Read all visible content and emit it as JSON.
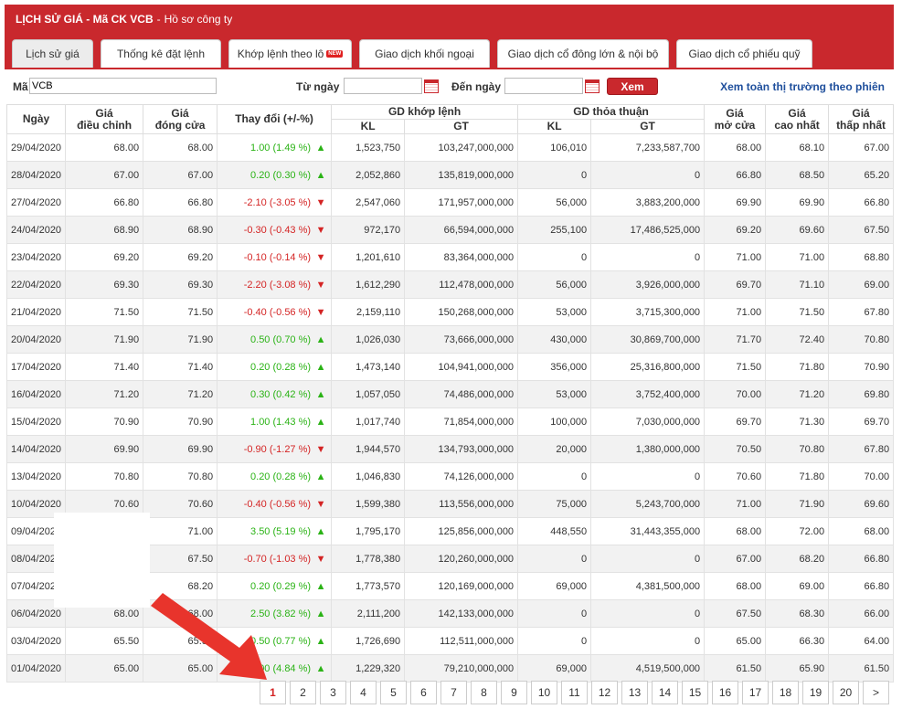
{
  "header": {
    "title": "LỊCH SỬ GIÁ - Mã CK VCB",
    "separator": "-",
    "profile_link": "Hồ sơ công ty"
  },
  "tabs": [
    {
      "label": "Lịch sử giá",
      "active": true
    },
    {
      "label": "Thống kê đặt lệnh",
      "active": false
    },
    {
      "label": "Khớp lệnh theo lô",
      "active": false,
      "badge": "NEW"
    },
    {
      "label": "Giao dịch khối ngoại",
      "active": false
    },
    {
      "label": "Giao dịch cổ đông lớn & nội bộ",
      "active": false
    },
    {
      "label": "Giao dịch cổ phiếu quỹ",
      "active": false
    }
  ],
  "filter": {
    "code_label": "Mã",
    "code_value": "VCB",
    "from_label": "Từ ngày",
    "from_value": "",
    "to_label": "Đến ngày",
    "to_value": "",
    "submit_label": "Xem",
    "market_link": "Xem toàn thị trường theo phiên"
  },
  "table": {
    "headers": {
      "date": "Ngày",
      "adj_price": "Giá\nđiều chỉnh",
      "close_price": "Giá\nđóng cửa",
      "change": "Thay đổi (+/-%)",
      "matched": "GD khớp lệnh",
      "negotiated": "GD thỏa thuận",
      "kl": "KL",
      "gt": "GT",
      "open": "Giá\nmở cửa",
      "high": "Giá\ncao nhất",
      "low": "Giá\nthấp nhất"
    },
    "rows": [
      {
        "date": "29/04/2020",
        "adj": "68.00",
        "close": "68.00",
        "change": "1.00 (1.49 %)",
        "dir": "up",
        "kl": "1,523,750",
        "gt": "103,247,000,000",
        "tt_kl": "106,010",
        "tt_gt": "7,233,587,700",
        "open": "68.00",
        "high": "68.10",
        "low": "67.00"
      },
      {
        "date": "28/04/2020",
        "adj": "67.00",
        "close": "67.00",
        "change": "0.20 (0.30 %)",
        "dir": "up",
        "kl": "2,052,860",
        "gt": "135,819,000,000",
        "tt_kl": "0",
        "tt_gt": "0",
        "open": "66.80",
        "high": "68.50",
        "low": "65.20"
      },
      {
        "date": "27/04/2020",
        "adj": "66.80",
        "close": "66.80",
        "change": "-2.10 (-3.05 %)",
        "dir": "down",
        "kl": "2,547,060",
        "gt": "171,957,000,000",
        "tt_kl": "56,000",
        "tt_gt": "3,883,200,000",
        "open": "69.90",
        "high": "69.90",
        "low": "66.80"
      },
      {
        "date": "24/04/2020",
        "adj": "68.90",
        "close": "68.90",
        "change": "-0.30 (-0.43 %)",
        "dir": "down",
        "kl": "972,170",
        "gt": "66,594,000,000",
        "tt_kl": "255,100",
        "tt_gt": "17,486,525,000",
        "open": "69.20",
        "high": "69.60",
        "low": "67.50"
      },
      {
        "date": "23/04/2020",
        "adj": "69.20",
        "close": "69.20",
        "change": "-0.10 (-0.14 %)",
        "dir": "down",
        "kl": "1,201,610",
        "gt": "83,364,000,000",
        "tt_kl": "0",
        "tt_gt": "0",
        "open": "71.00",
        "high": "71.00",
        "low": "68.80"
      },
      {
        "date": "22/04/2020",
        "adj": "69.30",
        "close": "69.30",
        "change": "-2.20 (-3.08 %)",
        "dir": "down",
        "kl": "1,612,290",
        "gt": "112,478,000,000",
        "tt_kl": "56,000",
        "tt_gt": "3,926,000,000",
        "open": "69.70",
        "high": "71.10",
        "low": "69.00"
      },
      {
        "date": "21/04/2020",
        "adj": "71.50",
        "close": "71.50",
        "change": "-0.40 (-0.56 %)",
        "dir": "down",
        "kl": "2,159,110",
        "gt": "150,268,000,000",
        "tt_kl": "53,000",
        "tt_gt": "3,715,300,000",
        "open": "71.00",
        "high": "71.50",
        "low": "67.80"
      },
      {
        "date": "20/04/2020",
        "adj": "71.90",
        "close": "71.90",
        "change": "0.50 (0.70 %)",
        "dir": "up",
        "kl": "1,026,030",
        "gt": "73,666,000,000",
        "tt_kl": "430,000",
        "tt_gt": "30,869,700,000",
        "open": "71.70",
        "high": "72.40",
        "low": "70.80"
      },
      {
        "date": "17/04/2020",
        "adj": "71.40",
        "close": "71.40",
        "change": "0.20 (0.28 %)",
        "dir": "up",
        "kl": "1,473,140",
        "gt": "104,941,000,000",
        "tt_kl": "356,000",
        "tt_gt": "25,316,800,000",
        "open": "71.50",
        "high": "71.80",
        "low": "70.90"
      },
      {
        "date": "16/04/2020",
        "adj": "71.20",
        "close": "71.20",
        "change": "0.30 (0.42 %)",
        "dir": "up",
        "kl": "1,057,050",
        "gt": "74,486,000,000",
        "tt_kl": "53,000",
        "tt_gt": "3,752,400,000",
        "open": "70.00",
        "high": "71.20",
        "low": "69.80"
      },
      {
        "date": "15/04/2020",
        "adj": "70.90",
        "close": "70.90",
        "change": "1.00 (1.43 %)",
        "dir": "up",
        "kl": "1,017,740",
        "gt": "71,854,000,000",
        "tt_kl": "100,000",
        "tt_gt": "7,030,000,000",
        "open": "69.70",
        "high": "71.30",
        "low": "69.70"
      },
      {
        "date": "14/04/2020",
        "adj": "69.90",
        "close": "69.90",
        "change": "-0.90 (-1.27 %)",
        "dir": "down",
        "kl": "1,944,570",
        "gt": "134,793,000,000",
        "tt_kl": "20,000",
        "tt_gt": "1,380,000,000",
        "open": "70.50",
        "high": "70.80",
        "low": "67.80"
      },
      {
        "date": "13/04/2020",
        "adj": "70.80",
        "close": "70.80",
        "change": "0.20 (0.28 %)",
        "dir": "up",
        "kl": "1,046,830",
        "gt": "74,126,000,000",
        "tt_kl": "0",
        "tt_gt": "0",
        "open": "70.60",
        "high": "71.80",
        "low": "70.00"
      },
      {
        "date": "10/04/2020",
        "adj": "70.60",
        "close": "70.60",
        "change": "-0.40 (-0.56 %)",
        "dir": "down",
        "kl": "1,599,380",
        "gt": "113,556,000,000",
        "tt_kl": "75,000",
        "tt_gt": "5,243,700,000",
        "open": "71.00",
        "high": "71.90",
        "low": "69.60"
      },
      {
        "date": "09/04/2020",
        "adj": "",
        "close": "71.00",
        "change": "3.50 (5.19 %)",
        "dir": "up",
        "kl": "1,795,170",
        "gt": "125,856,000,000",
        "tt_kl": "448,550",
        "tt_gt": "31,443,355,000",
        "open": "68.00",
        "high": "72.00",
        "low": "68.00"
      },
      {
        "date": "08/04/2020",
        "adj": "",
        "close": "67.50",
        "change": "-0.70 (-1.03 %)",
        "dir": "down",
        "kl": "1,778,380",
        "gt": "120,260,000,000",
        "tt_kl": "0",
        "tt_gt": "0",
        "open": "67.00",
        "high": "68.20",
        "low": "66.80"
      },
      {
        "date": "07/04/2020",
        "adj": "",
        "close": "68.20",
        "change": "0.20 (0.29 %)",
        "dir": "up",
        "kl": "1,773,570",
        "gt": "120,169,000,000",
        "tt_kl": "69,000",
        "tt_gt": "4,381,500,000",
        "open": "68.00",
        "high": "69.00",
        "low": "66.80"
      },
      {
        "date": "06/04/2020",
        "adj": "68.00",
        "close": "68.00",
        "change": "2.50 (3.82 %)",
        "dir": "up",
        "kl": "2,111,200",
        "gt": "142,133,000,000",
        "tt_kl": "0",
        "tt_gt": "0",
        "open": "67.50",
        "high": "68.30",
        "low": "66.00"
      },
      {
        "date": "03/04/2020",
        "adj": "65.50",
        "close": "65.50",
        "change": "0.50 (0.77 %)",
        "dir": "up",
        "kl": "1,726,690",
        "gt": "112,511,000,000",
        "tt_kl": "0",
        "tt_gt": "0",
        "open": "65.00",
        "high": "66.30",
        "low": "64.00"
      },
      {
        "date": "01/04/2020",
        "adj": "65.00",
        "close": "65.00",
        "change": "3.00 (4.84 %)",
        "dir": "up",
        "kl": "1,229,320",
        "gt": "79,210,000,000",
        "tt_kl": "69,000",
        "tt_gt": "4,519,500,000",
        "open": "61.50",
        "high": "65.90",
        "low": "61.50"
      }
    ]
  },
  "pagination": {
    "pages": [
      "1",
      "2",
      "3",
      "4",
      "5",
      "6",
      "7",
      "8",
      "9",
      "10",
      "11",
      "12",
      "13",
      "14",
      "15",
      "16",
      "17",
      "18",
      "19",
      "20"
    ],
    "active": "1",
    "next_label": ">"
  },
  "icons": {
    "up": "arrow-up-icon",
    "down": "arrow-down-icon",
    "calendar": "calendar-icon"
  },
  "colors": {
    "brand_red": "#c9282d",
    "up_green": "#2bb316",
    "down_red": "#d42424",
    "link_blue": "#1f4f9c",
    "annotation_arrow": "#e8342c"
  }
}
